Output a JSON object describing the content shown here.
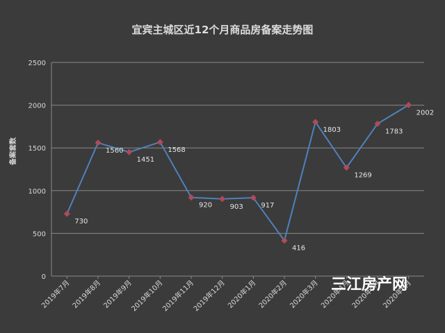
{
  "chart_data": {
    "type": "line",
    "title": "宜宾主城区近12个月商品房备案走势图",
    "xlabel": "",
    "ylabel": "备案套数",
    "categories": [
      "2019年7月",
      "2019年8月",
      "2019年9月",
      "2019年10月",
      "2019年11月",
      "2019年12月",
      "2020年1月",
      "2020年2月",
      "2020年3月",
      "2020年4月",
      "2020年5月",
      "2020年6月"
    ],
    "series": [
      {
        "values": [
          730,
          1560,
          1451,
          1568,
          920,
          903,
          917,
          416,
          1803,
          1269,
          1783,
          2002
        ]
      }
    ],
    "yticks": [
      "0",
      "500",
      "1000",
      "1500",
      "2000",
      "2500"
    ],
    "ylim": [
      0,
      2500
    ],
    "grid": true,
    "legend": "none"
  },
  "colors": {
    "background": "#3b3b3b",
    "line": "#4f81bd",
    "marker": "#b04a5a",
    "grid": "#8a8a8a"
  },
  "watermark": "三江房产网"
}
